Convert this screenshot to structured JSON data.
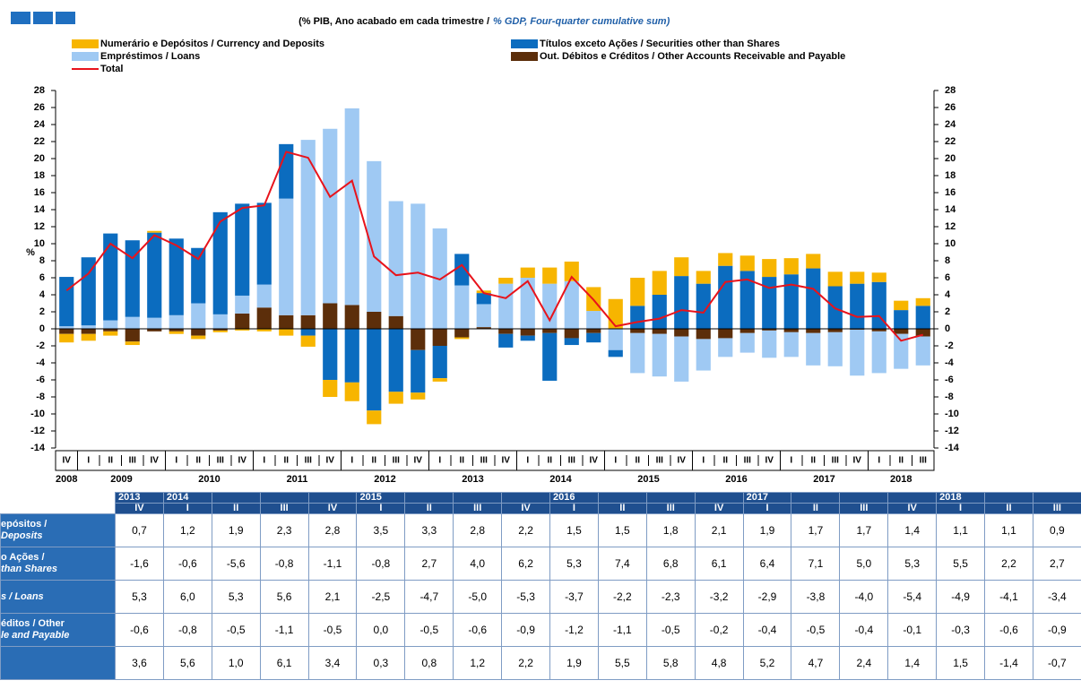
{
  "chart_data": {
    "type": "bar",
    "stacked": true,
    "subtitle_pt": "(% PIB, Ano acabado em cada trimestre  /",
    "subtitle_en": "% GDP, Four-quarter cumulative sum)",
    "ylabel": "%",
    "categories": [
      "IV",
      "I",
      "II",
      "III",
      "IV",
      "I",
      "II",
      "III",
      "IV",
      "I",
      "II",
      "III",
      "IV",
      "I",
      "II",
      "III",
      "IV",
      "I",
      "II",
      "III",
      "IV",
      "I",
      "II",
      "III",
      "IV",
      "I",
      "II",
      "III",
      "IV",
      "I",
      "II",
      "III",
      "IV",
      "I",
      "II",
      "III",
      "IV",
      "I",
      "II",
      "III"
    ],
    "years": [
      "2008",
      "2009",
      "2010",
      "2011",
      "2012",
      "2013",
      "2014",
      "2015",
      "2016",
      "2017",
      "2018"
    ],
    "ylim": [
      -14,
      28
    ],
    "yticks": [
      -14,
      -12,
      -10,
      -8,
      -6,
      -4,
      -2,
      0,
      2,
      4,
      6,
      8,
      10,
      12,
      14,
      16,
      18,
      20,
      22,
      24,
      26,
      28
    ],
    "series": [
      {
        "name": "Numerário e Depósitos / Currency and Deposits",
        "color": "#f7b500",
        "values": [
          -1.0,
          -0.8,
          -0.5,
          -0.4,
          0.2,
          -0.3,
          -0.4,
          -0.2,
          -0.2,
          -0.3,
          -0.8,
          -1.3,
          -2.0,
          -2.2,
          -1.6,
          -1.4,
          -0.8,
          -0.4,
          -0.2,
          0.3,
          0.7,
          1.2,
          1.9,
          2.3,
          2.8,
          3.5,
          3.3,
          2.8,
          2.2,
          1.5,
          1.5,
          1.8,
          2.1,
          1.9,
          1.7,
          1.7,
          1.4,
          1.1,
          1.1,
          0.9
        ]
      },
      {
        "name": "Títulos exceto Ações / Securities other than Shares",
        "color": "#0b6cbf",
        "values": [
          5.8,
          8.0,
          10.2,
          9.0,
          10.0,
          9.0,
          6.5,
          12.0,
          10.8,
          9.6,
          6.4,
          -0.8,
          -6.0,
          -6.3,
          -9.6,
          -7.4,
          -5.0,
          -3.8,
          3.7,
          1.3,
          -1.6,
          -0.6,
          -5.6,
          -0.8,
          -1.1,
          -0.8,
          2.7,
          4.0,
          6.2,
          5.3,
          7.4,
          6.8,
          6.1,
          6.4,
          7.1,
          5.0,
          5.3,
          5.5,
          2.2,
          2.7
        ]
      },
      {
        "name": "Empréstimos / Loans",
        "color": "#9fc9f3",
        "values": [
          0.3,
          0.4,
          1.0,
          1.4,
          1.3,
          1.6,
          3.0,
          1.7,
          2.1,
          2.7,
          13.7,
          20.6,
          20.5,
          23.1,
          17.7,
          13.5,
          14.7,
          11.8,
          5.1,
          2.7,
          5.3,
          6.0,
          5.3,
          5.6,
          2.1,
          -2.5,
          -4.7,
          -5.0,
          -5.3,
          -3.7,
          -2.2,
          -2.3,
          -3.2,
          -2.9,
          -3.8,
          -4.0,
          -5.4,
          -4.9,
          -4.1,
          -3.4
        ]
      },
      {
        "name": "Out. Débitos e Créditos / Other Accounts Receivable and Payable",
        "color": "#5c2e0a",
        "values": [
          -0.6,
          -0.6,
          -0.3,
          -1.5,
          -0.3,
          -0.3,
          -0.8,
          -0.2,
          1.8,
          2.5,
          1.6,
          1.6,
          3.0,
          2.8,
          2.0,
          1.5,
          -2.5,
          -2.0,
          -1.0,
          0.2,
          -0.6,
          -0.8,
          -0.5,
          -1.1,
          -0.5,
          0.0,
          -0.5,
          -0.6,
          -0.9,
          -1.2,
          -1.1,
          -0.5,
          -0.2,
          -0.4,
          -0.5,
          -0.4,
          -0.1,
          -0.3,
          -0.6,
          -0.9
        ]
      },
      {
        "name": "Total",
        "color": "#e8131b",
        "type": "line",
        "values": [
          4.5,
          6.5,
          10,
          8.3,
          11,
          9.8,
          8.2,
          12.6,
          14.2,
          14.5,
          20.8,
          20.1,
          15.5,
          17.4,
          8.5,
          6.3,
          6.6,
          5.8,
          7.5,
          4.2,
          3.6,
          5.6,
          1.0,
          6.1,
          3.4,
          0.3,
          0.8,
          1.2,
          2.2,
          1.9,
          5.5,
          5.8,
          4.8,
          5.2,
          4.7,
          2.4,
          1.4,
          1.5,
          -1.4,
          -0.7
        ]
      }
    ]
  },
  "table": {
    "years": [
      "2013",
      "2014",
      null,
      null,
      null,
      "2015",
      null,
      null,
      null,
      "2016",
      null,
      null,
      null,
      "2017",
      null,
      null,
      null,
      "2018",
      null,
      null
    ],
    "quarters": [
      "IV",
      "I",
      "II",
      "III",
      "IV",
      "I",
      "II",
      "III",
      "IV",
      "I",
      "II",
      "III",
      "IV",
      "I",
      "II",
      "III",
      "IV",
      "I",
      "II",
      "III"
    ],
    "row_labels": [
      [
        "epósitos /",
        "Deposits"
      ],
      [
        "o Ações /",
        "than Shares"
      ],
      [
        "s / Loans"
      ],
      [
        "éditos / Other",
        "le and Payable"
      ],
      []
    ],
    "rows": [
      [
        "0,7",
        "1,2",
        "1,9",
        "2,3",
        "2,8",
        "3,5",
        "3,3",
        "2,8",
        "2,2",
        "1,5",
        "1,5",
        "1,8",
        "2,1",
        "1,9",
        "1,7",
        "1,7",
        "1,4",
        "1,1",
        "1,1",
        "0,9"
      ],
      [
        "-1,6",
        "-0,6",
        "-5,6",
        "-0,8",
        "-1,1",
        "-0,8",
        "2,7",
        "4,0",
        "6,2",
        "5,3",
        "7,4",
        "6,8",
        "6,1",
        "6,4",
        "7,1",
        "5,0",
        "5,3",
        "5,5",
        "2,2",
        "2,7"
      ],
      [
        "5,3",
        "6,0",
        "5,3",
        "5,6",
        "2,1",
        "-2,5",
        "-4,7",
        "-5,0",
        "-5,3",
        "-3,7",
        "-2,2",
        "-2,3",
        "-3,2",
        "-2,9",
        "-3,8",
        "-4,0",
        "-5,4",
        "-4,9",
        "-4,1",
        "-3,4"
      ],
      [
        "-0,6",
        "-0,8",
        "-0,5",
        "-1,1",
        "-0,5",
        "0,0",
        "-0,5",
        "-0,6",
        "-0,9",
        "-1,2",
        "-1,1",
        "-0,5",
        "-0,2",
        "-0,4",
        "-0,5",
        "-0,4",
        "-0,1",
        "-0,3",
        "-0,6",
        "-0,9"
      ],
      [
        "3,6",
        "5,6",
        "1,0",
        "6,1",
        "3,4",
        "0,3",
        "0,8",
        "1,2",
        "2,2",
        "1,9",
        "5,5",
        "5,8",
        "4,8",
        "5,2",
        "4,7",
        "2,4",
        "1,4",
        "1,5",
        "-1,4",
        "-0,7"
      ]
    ]
  }
}
